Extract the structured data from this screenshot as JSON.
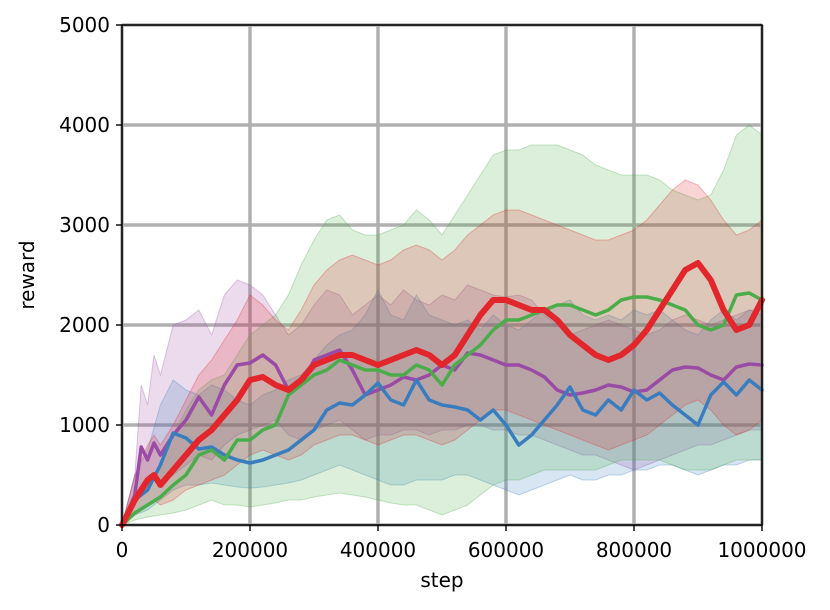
{
  "chart_data": {
    "type": "line",
    "title": "",
    "xlabel": "step",
    "ylabel": "reward",
    "xlim": [
      0,
      1000000
    ],
    "ylim": [
      0,
      5000
    ],
    "xticks": [
      0,
      200000,
      400000,
      600000,
      800000,
      1000000
    ],
    "xtick_labels": [
      "0",
      "200000",
      "400000",
      "600000",
      "800000",
      "1000000"
    ],
    "yticks": [
      0,
      1000,
      2000,
      3000,
      4000,
      5000
    ],
    "ytick_labels": [
      "0",
      "1000",
      "2000",
      "3000",
      "4000",
      "5000"
    ],
    "grid": true,
    "legend": "none",
    "series": [
      {
        "color": "#9a4ba6",
        "x": [
          0,
          20000,
          30000,
          40000,
          50000,
          60000,
          80000,
          100000,
          120000,
          140000,
          160000,
          180000,
          200000,
          220000,
          240000,
          260000,
          280000,
          300000,
          320000,
          340000,
          360000,
          380000,
          400000,
          420000,
          440000,
          460000,
          480000,
          500000,
          520000,
          540000,
          560000,
          580000,
          600000,
          620000,
          640000,
          660000,
          680000,
          700000,
          720000,
          740000,
          760000,
          780000,
          800000,
          820000,
          840000,
          860000,
          880000,
          900000,
          920000,
          940000,
          960000,
          980000,
          1000000
        ],
        "y": [
          0,
          300,
          780,
          650,
          820,
          700,
          900,
          1050,
          1280,
          1100,
          1400,
          1600,
          1620,
          1700,
          1600,
          1350,
          1400,
          1650,
          1700,
          1750,
          1550,
          1300,
          1350,
          1400,
          1480,
          1450,
          1500,
          1600,
          1550,
          1720,
          1700,
          1650,
          1600,
          1600,
          1550,
          1480,
          1350,
          1300,
          1320,
          1350,
          1400,
          1380,
          1330,
          1350,
          1450,
          1550,
          1580,
          1570,
          1500,
          1450,
          1580,
          1610,
          1600
        ],
        "upper": [
          0,
          500,
          1400,
          1200,
          1700,
          1500,
          2000,
          2050,
          2150,
          1900,
          2300,
          2450,
          2400,
          2300,
          2100,
          1900,
          2000,
          2200,
          2350,
          2300,
          2100,
          2200,
          2300,
          2200,
          2350,
          2250,
          2200,
          2300,
          2250,
          2400,
          2350,
          2300,
          2280,
          2300,
          2250,
          2100,
          2000,
          1900,
          1950,
          2000,
          2050,
          2000,
          1950,
          1900,
          1950,
          2050,
          2100,
          2050,
          2000,
          2050,
          2100,
          2150,
          2150
        ],
        "lower": [
          0,
          200,
          400,
          350,
          450,
          400,
          500,
          600,
          700,
          650,
          800,
          900,
          950,
          1000,
          1050,
          900,
          850,
          950,
          1000,
          1050,
          950,
          850,
          900,
          900,
          950,
          950,
          900,
          950,
          950,
          1000,
          1000,
          950,
          950,
          900,
          900,
          850,
          800,
          750,
          700,
          700,
          650,
          600,
          550,
          600,
          650,
          700,
          750,
          800,
          800,
          850,
          900,
          950,
          950
        ]
      },
      {
        "color": "#3a7dbf",
        "x": [
          0,
          20000,
          40000,
          60000,
          80000,
          100000,
          120000,
          140000,
          160000,
          180000,
          200000,
          220000,
          240000,
          260000,
          280000,
          300000,
          320000,
          340000,
          360000,
          380000,
          400000,
          420000,
          440000,
          460000,
          480000,
          500000,
          520000,
          540000,
          560000,
          580000,
          600000,
          620000,
          640000,
          660000,
          680000,
          700000,
          720000,
          740000,
          760000,
          780000,
          800000,
          820000,
          840000,
          860000,
          880000,
          900000,
          920000,
          940000,
          960000,
          980000,
          1000000
        ],
        "y": [
          0,
          250,
          350,
          600,
          920,
          870,
          760,
          780,
          700,
          650,
          620,
          650,
          700,
          750,
          850,
          950,
          1150,
          1220,
          1200,
          1300,
          1420,
          1250,
          1200,
          1450,
          1250,
          1200,
          1180,
          1150,
          1050,
          1150,
          1000,
          800,
          900,
          1050,
          1200,
          1380,
          1150,
          1100,
          1250,
          1150,
          1350,
          1250,
          1320,
          1200,
          1100,
          1000,
          1300,
          1430,
          1300,
          1450,
          1350
        ],
        "upper": [
          0,
          500,
          750,
          1200,
          1450,
          1350,
          1300,
          1400,
          1350,
          1250,
          1200,
          1300,
          1350,
          1450,
          1500,
          1650,
          1800,
          1900,
          1950,
          2100,
          2350,
          2100,
          2050,
          2300,
          2100,
          2050,
          2000,
          2050,
          1950,
          2100,
          2000,
          1950,
          2050,
          2150,
          2200,
          2250,
          2100,
          2050,
          2100,
          2050,
          2150,
          2100,
          2150,
          2050,
          1950,
          1900,
          2050,
          2150,
          2050,
          2150,
          2100
        ],
        "lower": [
          0,
          100,
          150,
          250,
          350,
          400,
          400,
          420,
          400,
          380,
          370,
          380,
          400,
          420,
          450,
          500,
          550,
          600,
          550,
          500,
          450,
          400,
          400,
          450,
          450,
          450,
          500,
          500,
          450,
          400,
          350,
          300,
          350,
          400,
          450,
          500,
          450,
          450,
          500,
          500,
          550,
          550,
          600,
          600,
          550,
          500,
          550,
          600,
          600,
          650,
          650
        ]
      },
      {
        "color": "#4aad4a",
        "x": [
          0,
          20000,
          40000,
          60000,
          80000,
          100000,
          120000,
          140000,
          160000,
          180000,
          200000,
          220000,
          240000,
          260000,
          280000,
          300000,
          320000,
          340000,
          360000,
          380000,
          400000,
          420000,
          440000,
          460000,
          480000,
          500000,
          520000,
          540000,
          560000,
          580000,
          600000,
          620000,
          640000,
          660000,
          680000,
          700000,
          720000,
          740000,
          760000,
          780000,
          800000,
          820000,
          840000,
          860000,
          880000,
          900000,
          920000,
          940000,
          960000,
          980000,
          1000000
        ],
        "y": [
          0,
          120,
          200,
          280,
          400,
          500,
          700,
          750,
          650,
          850,
          850,
          950,
          1000,
          1300,
          1400,
          1500,
          1550,
          1650,
          1600,
          1550,
          1550,
          1500,
          1500,
          1600,
          1550,
          1400,
          1600,
          1700,
          1800,
          1950,
          2050,
          2050,
          2100,
          2150,
          2200,
          2200,
          2150,
          2100,
          2150,
          2250,
          2280,
          2280,
          2250,
          2200,
          2150,
          2000,
          1950,
          2000,
          2300,
          2320,
          2250
        ],
        "upper": [
          0,
          250,
          400,
          600,
          900,
          1150,
          1350,
          1450,
          1500,
          1700,
          1900,
          2000,
          2100,
          2300,
          2600,
          2850,
          3050,
          3100,
          2950,
          2900,
          2900,
          2950,
          3000,
          3150,
          3050,
          2900,
          3100,
          3300,
          3500,
          3700,
          3750,
          3750,
          3800,
          3800,
          3800,
          3750,
          3700,
          3600,
          3550,
          3500,
          3500,
          3500,
          3450,
          3350,
          3300,
          3250,
          3300,
          3550,
          3900,
          4000,
          3900
        ],
        "lower": [
          0,
          50,
          80,
          100,
          120,
          150,
          200,
          250,
          200,
          200,
          180,
          200,
          220,
          250,
          250,
          280,
          300,
          320,
          300,
          280,
          250,
          220,
          200,
          200,
          150,
          100,
          150,
          200,
          300,
          400,
          450,
          450,
          500,
          550,
          550,
          550,
          550,
          550,
          600,
          650,
          650,
          650,
          650,
          600,
          550,
          550,
          550,
          600,
          650,
          650,
          650
        ]
      },
      {
        "color": "#e3262b",
        "x": [
          0,
          20000,
          40000,
          50000,
          60000,
          80000,
          100000,
          120000,
          140000,
          160000,
          180000,
          200000,
          220000,
          240000,
          260000,
          280000,
          300000,
          320000,
          340000,
          360000,
          380000,
          400000,
          420000,
          440000,
          460000,
          480000,
          500000,
          520000,
          540000,
          560000,
          580000,
          600000,
          620000,
          640000,
          660000,
          680000,
          700000,
          720000,
          740000,
          760000,
          780000,
          800000,
          820000,
          840000,
          860000,
          880000,
          900000,
          920000,
          940000,
          960000,
          980000,
          1000000
        ],
        "y": [
          0,
          250,
          450,
          500,
          400,
          550,
          700,
          850,
          950,
          1100,
          1250,
          1450,
          1480,
          1400,
          1350,
          1450,
          1600,
          1650,
          1700,
          1700,
          1650,
          1600,
          1650,
          1700,
          1750,
          1700,
          1600,
          1700,
          1900,
          2100,
          2250,
          2250,
          2200,
          2150,
          2150,
          2050,
          1900,
          1800,
          1700,
          1650,
          1700,
          1800,
          1950,
          2150,
          2350,
          2550,
          2620,
          2450,
          2150,
          1950,
          2000,
          2250
        ],
        "upper": [
          0,
          500,
          800,
          900,
          800,
          1000,
          1250,
          1500,
          1650,
          1850,
          2050,
          2300,
          2200,
          2050,
          1950,
          2150,
          2400,
          2550,
          2650,
          2700,
          2650,
          2600,
          2650,
          2750,
          2800,
          2750,
          2650,
          2750,
          2900,
          3000,
          3100,
          3150,
          3150,
          3100,
          3050,
          3000,
          2950,
          2900,
          2850,
          2850,
          2900,
          2950,
          3050,
          3200,
          3350,
          3450,
          3400,
          3250,
          3050,
          2900,
          2950,
          3050
        ],
        "lower": [
          0,
          100,
          200,
          250,
          200,
          250,
          350,
          400,
          450,
          500,
          600,
          700,
          750,
          700,
          650,
          700,
          800,
          850,
          900,
          900,
          850,
          800,
          850,
          900,
          900,
          850,
          800,
          850,
          950,
          1050,
          1150,
          1150,
          1100,
          1050,
          1000,
          950,
          900,
          850,
          800,
          750,
          800,
          850,
          900,
          1000,
          1100,
          1200,
          1250,
          1150,
          1000,
          900,
          950,
          1050
        ]
      }
    ]
  }
}
